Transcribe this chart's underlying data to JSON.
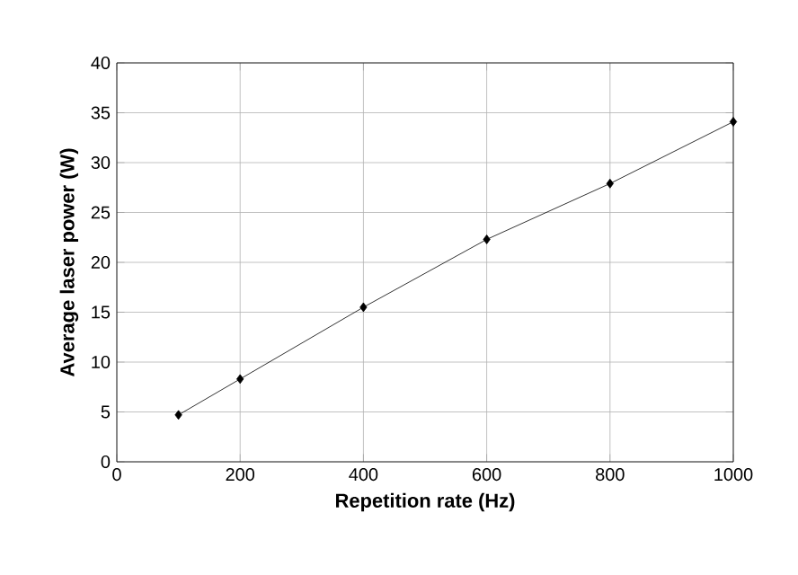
{
  "chart_data": {
    "type": "line",
    "xlabel": "Repetition rate (Hz)",
    "ylabel": "Average laser power (W)",
    "x": [
      100,
      200,
      400,
      600,
      800,
      1000
    ],
    "series": [
      {
        "color": "#000000",
        "values": [
          4.7,
          8.3,
          15.5,
          22.3,
          27.9,
          34.1
        ]
      }
    ],
    "xlim": [
      0,
      1000
    ],
    "xticks": [
      0,
      200,
      400,
      600,
      800,
      1000
    ],
    "ylim": [
      0,
      40
    ],
    "yticks": [
      0,
      5,
      10,
      15,
      20,
      25,
      30,
      35,
      40
    ],
    "grid": true,
    "marker": "diamond",
    "line_style": "solid"
  }
}
